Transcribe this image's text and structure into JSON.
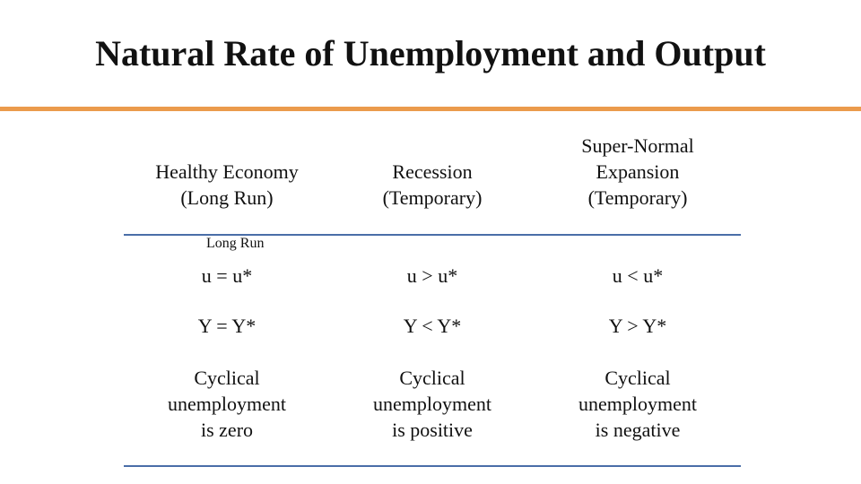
{
  "title": "Natural Rate of Unemployment and Output",
  "table": {
    "header": [
      [
        "Healthy Economy",
        "(Long Run)"
      ],
      [
        "Recession",
        "(Temporary)"
      ],
      [
        "Super-Normal",
        "Expansion",
        "(Temporary)"
      ]
    ],
    "note": "Long Run",
    "rows": [
      [
        [
          "u = u*"
        ],
        [
          "u > u*"
        ],
        [
          "u < u*"
        ]
      ],
      [
        [
          "Y = Y*"
        ],
        [
          "Y < Y*"
        ],
        [
          "Y > Y*"
        ]
      ],
      [
        [
          "Cyclical",
          "unemployment",
          "is zero"
        ],
        [
          "Cyclical",
          "unemployment",
          "is positive"
        ],
        [
          "Cyclical",
          "unemployment",
          "is negative"
        ]
      ]
    ]
  }
}
